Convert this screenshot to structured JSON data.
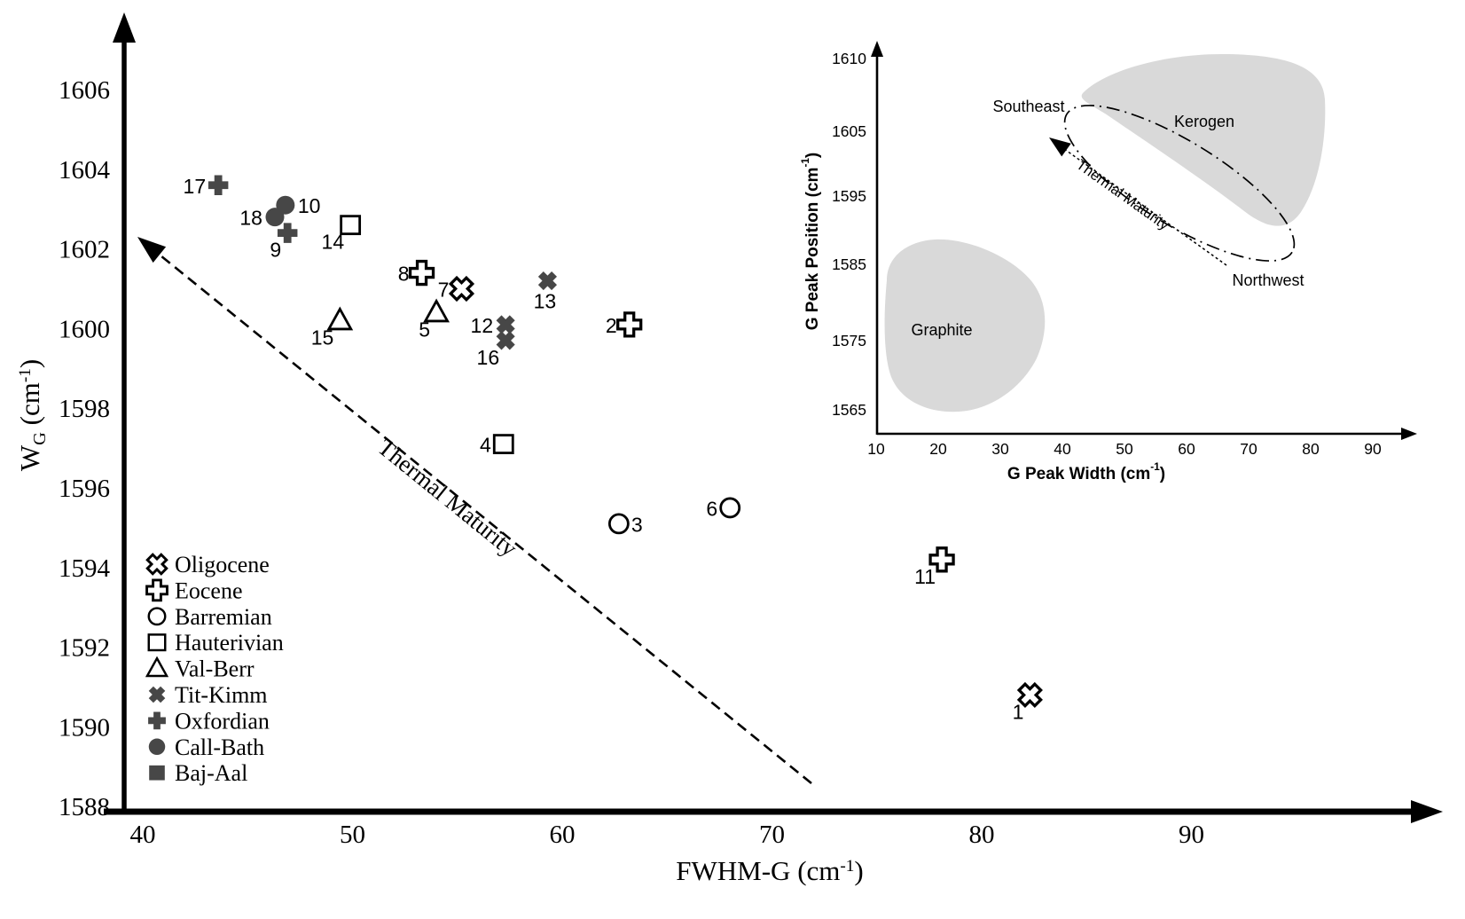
{
  "figure": {
    "background": "#ffffff",
    "marker_fill_dark": "#474747",
    "region_fill": "#d9d9d9",
    "axis_color": "#000000"
  },
  "chart_data": {
    "type": "scatter",
    "title": "",
    "xlabel": "FWHM-G (cm⁻¹)",
    "xlabel_parts": [
      [
        "t",
        "FWHM-G (cm"
      ],
      [
        "sup",
        "-1"
      ],
      [
        "t",
        ")"
      ]
    ],
    "ylabel": "WG (cm⁻¹)",
    "ylabel_parts": [
      [
        "t",
        "W"
      ],
      [
        "sub",
        "G"
      ],
      [
        "t",
        " (cm"
      ],
      [
        "sup",
        "-1"
      ],
      [
        "t",
        ")"
      ]
    ],
    "xlim": [
      40,
      97
    ],
    "ylim": [
      1588,
      1607
    ],
    "x_ticks": [
      40,
      50,
      60,
      70,
      80,
      90
    ],
    "y_ticks": [
      1606,
      1604,
      1602,
      1600,
      1598,
      1596,
      1594,
      1592,
      1590,
      1588
    ],
    "grid": false,
    "trend_arrow_label": "Thermal Maturity",
    "legend_position": "lower-left-inside",
    "legend": [
      {
        "label": "Oligocene",
        "marker": "open-x"
      },
      {
        "label": "Eocene",
        "marker": "open-plus"
      },
      {
        "label": "Barremian",
        "marker": "open-circle"
      },
      {
        "label": "Hauterivian",
        "marker": "open-square"
      },
      {
        "label": "Val-Berr",
        "marker": "open-triangle"
      },
      {
        "label": "Tit-Kimm",
        "marker": "filled-x"
      },
      {
        "label": "Oxfordian",
        "marker": "filled-plus"
      },
      {
        "label": "Call-Bath",
        "marker": "filled-circle"
      },
      {
        "label": "Baj-Aal",
        "marker": "filled-square"
      }
    ],
    "points": [
      {
        "id": 1,
        "group": "Oligocene",
        "x": 82.3,
        "y": 1590.8,
        "label_pos": "below-left"
      },
      {
        "id": 2,
        "group": "Eocene",
        "x": 63.2,
        "y": 1600.1,
        "label_pos": "left"
      },
      {
        "id": 3,
        "group": "Barremian",
        "x": 62.7,
        "y": 1595.1,
        "label_pos": "right"
      },
      {
        "id": 4,
        "group": "Hauterivian",
        "x": 57.2,
        "y": 1597.1,
        "label_pos": "left"
      },
      {
        "id": 5,
        "group": "Val-Berr",
        "x": 54.0,
        "y": 1600.4,
        "label_pos": "below-left"
      },
      {
        "id": 6,
        "group": "Barremian",
        "x": 68.0,
        "y": 1595.5,
        "label_pos": "left"
      },
      {
        "id": 7,
        "group": "Oligocene",
        "x": 55.2,
        "y": 1601.0,
        "label_pos": "left"
      },
      {
        "id": 8,
        "group": "Eocene",
        "x": 53.3,
        "y": 1601.4,
        "label_pos": "left"
      },
      {
        "id": 9,
        "group": "Oxfordian",
        "x": 46.9,
        "y": 1602.4,
        "label_pos": "below-left"
      },
      {
        "id": 10,
        "group": "Call-Bath",
        "x": 46.8,
        "y": 1603.1,
        "label_pos": "right"
      },
      {
        "id": 11,
        "group": "Eocene",
        "x": 78.1,
        "y": 1594.2,
        "label_pos": "below-left"
      },
      {
        "id": 12,
        "group": "Tit-Kimm",
        "x": 57.3,
        "y": 1600.1,
        "label_pos": "left"
      },
      {
        "id": 13,
        "group": "Tit-Kimm",
        "x": 59.3,
        "y": 1601.2,
        "label_pos": "below"
      },
      {
        "id": 14,
        "group": "Hauterivian",
        "x": 49.9,
        "y": 1602.6,
        "label_pos": "below-left"
      },
      {
        "id": 15,
        "group": "Val-Berr",
        "x": 49.4,
        "y": 1600.2,
        "label_pos": "below-left"
      },
      {
        "id": 16,
        "group": "Tit-Kimm",
        "x": 57.3,
        "y": 1599.7,
        "label_pos": "below-left"
      },
      {
        "id": 17,
        "group": "Oxfordian",
        "x": 43.6,
        "y": 1603.6,
        "label_pos": "left"
      },
      {
        "id": 18,
        "group": "Call-Bath",
        "x": 46.3,
        "y": 1602.8,
        "label_pos": "left"
      }
    ]
  },
  "inset": {
    "type": "schematic-scatter-domain",
    "xlabel": "G Peak Width (cm⁻¹)",
    "xlabel_parts": [
      [
        "t",
        "G Peak Width (cm"
      ],
      [
        "sup",
        "-1"
      ],
      [
        "t",
        ")"
      ]
    ],
    "ylabel": "G Peak Position (cm⁻¹)",
    "ylabel_parts": [
      [
        "t",
        "G Peak Position (cm"
      ],
      [
        "sup",
        "-1"
      ],
      [
        "t",
        ")"
      ]
    ],
    "x_ticks": [
      10,
      20,
      30,
      40,
      50,
      60,
      70,
      80,
      90
    ],
    "y_ticks": [
      1610,
      1605,
      1595,
      1585,
      1575,
      1565
    ],
    "regions": [
      {
        "label": "Kerogen",
        "area": "upper-right"
      },
      {
        "label": "Graphite",
        "area": "lower-left"
      }
    ],
    "direction_labels": {
      "upper": "Southeast",
      "lower": "Northwest"
    },
    "arrow_label": "Thermal Maturity"
  }
}
